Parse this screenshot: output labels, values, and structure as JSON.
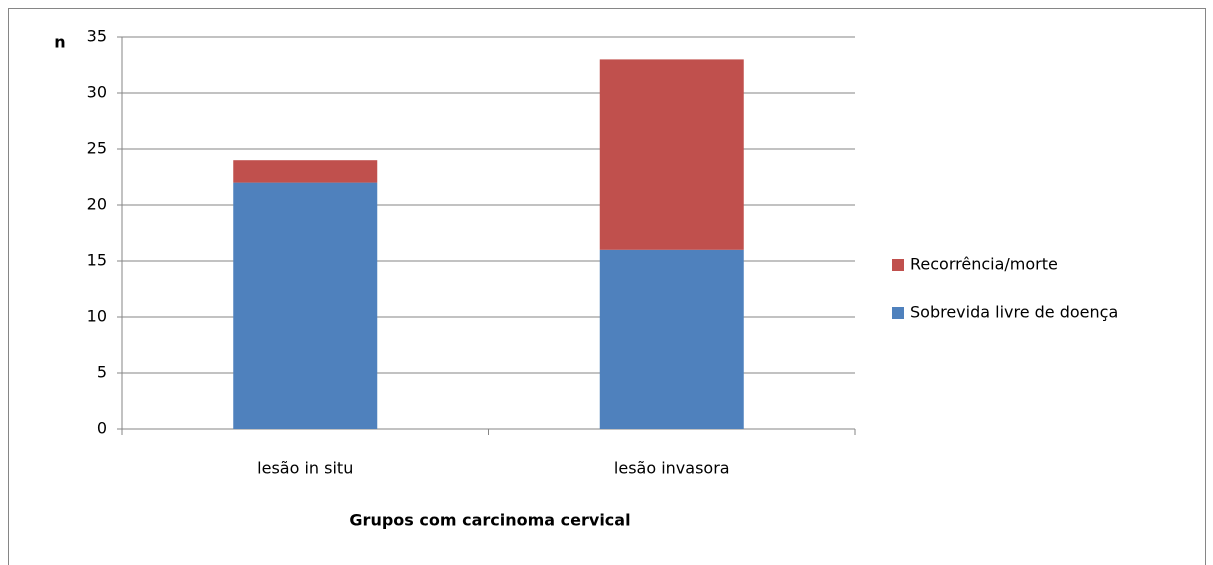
{
  "chart_data": {
    "type": "stacked-bar",
    "y_label": "n",
    "x_label": "Grupos com carcinoma cervical",
    "categories": [
      "lesão in situ",
      "lesão invasora"
    ],
    "series": [
      {
        "name": "Sobrevida livre de doença",
        "color": "#4f81bd",
        "values": [
          22,
          16
        ]
      },
      {
        "name": "Recorrência/morte",
        "color": "#c0504d",
        "values": [
          2,
          17
        ]
      }
    ],
    "ylim": [
      0,
      35
    ],
    "yticks": [
      0,
      5,
      10,
      15,
      20,
      25,
      30,
      35
    ],
    "grid": true,
    "legend": "right"
  }
}
